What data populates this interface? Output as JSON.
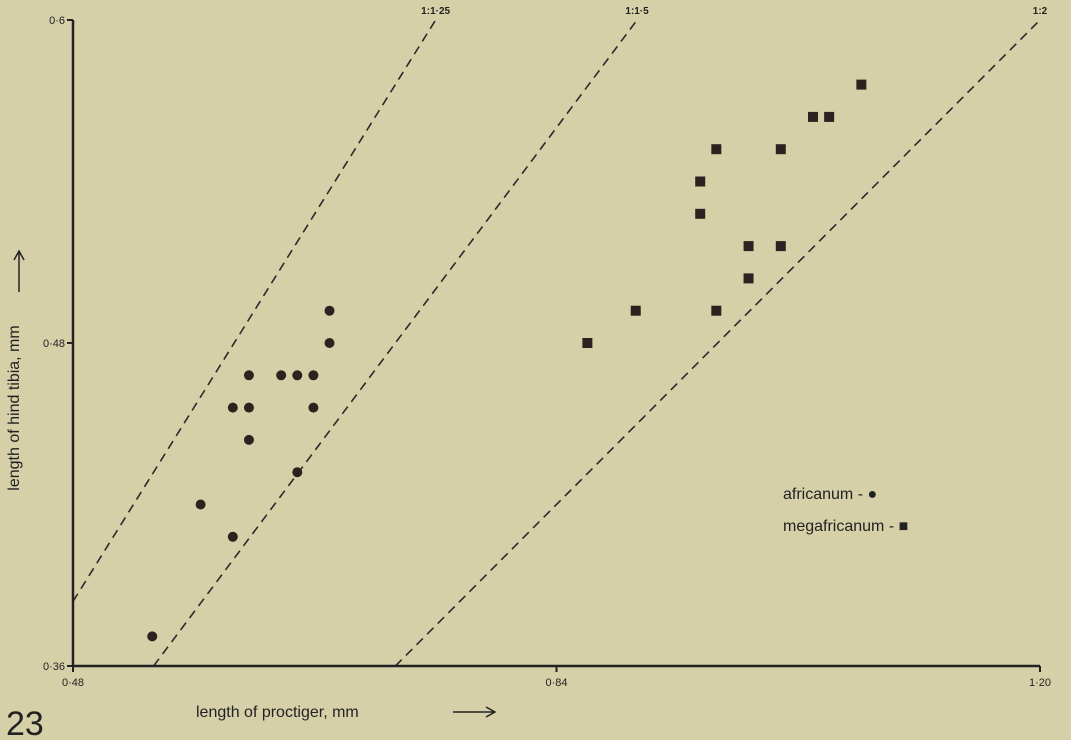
{
  "figure_number": "23",
  "chart_data": {
    "type": "scatter",
    "xlabel": "length of proctiger,  mm",
    "ylabel": "length of hind tibia,  mm",
    "xlim": [
      0.48,
      1.2
    ],
    "ylim": [
      0.36,
      0.6
    ],
    "x_ticks": [
      {
        "value": 0.48,
        "label": "0·48"
      },
      {
        "value": 0.84,
        "label": "0·84"
      },
      {
        "value": 1.2,
        "label": "1·20"
      }
    ],
    "y_ticks": [
      {
        "value": 0.36,
        "label": "0·36"
      },
      {
        "value": 0.48,
        "label": "0·48"
      },
      {
        "value": 0.6,
        "label": "0·6"
      }
    ],
    "reference_lines": [
      {
        "label": "1:1·25",
        "slope": 1.25
      },
      {
        "label": "1:1·5",
        "slope": 1.5
      },
      {
        "label": "1:2",
        "slope": 2
      }
    ],
    "legend_position": "bottom-right",
    "series": [
      {
        "name": "africanum",
        "legend_label": "africanum    - ●",
        "marker": "circle",
        "points": [
          {
            "x": 0.539,
            "y": 0.371
          },
          {
            "x": 0.575,
            "y": 0.42
          },
          {
            "x": 0.599,
            "y": 0.408
          },
          {
            "x": 0.599,
            "y": 0.456
          },
          {
            "x": 0.611,
            "y": 0.468
          },
          {
            "x": 0.611,
            "y": 0.456
          },
          {
            "x": 0.611,
            "y": 0.444
          },
          {
            "x": 0.635,
            "y": 0.468
          },
          {
            "x": 0.647,
            "y": 0.468
          },
          {
            "x": 0.647,
            "y": 0.432
          },
          {
            "x": 0.659,
            "y": 0.468
          },
          {
            "x": 0.659,
            "y": 0.456
          },
          {
            "x": 0.671,
            "y": 0.492
          },
          {
            "x": 0.671,
            "y": 0.48
          }
        ]
      },
      {
        "name": "megafricanum",
        "legend_label": "megafricanum  - ■",
        "marker": "square",
        "points": [
          {
            "x": 0.863,
            "y": 0.48
          },
          {
            "x": 0.899,
            "y": 0.492
          },
          {
            "x": 0.947,
            "y": 0.528
          },
          {
            "x": 0.947,
            "y": 0.54
          },
          {
            "x": 0.959,
            "y": 0.552
          },
          {
            "x": 0.959,
            "y": 0.492
          },
          {
            "x": 0.983,
            "y": 0.516
          },
          {
            "x": 0.983,
            "y": 0.504
          },
          {
            "x": 1.007,
            "y": 0.552
          },
          {
            "x": 1.007,
            "y": 0.516
          },
          {
            "x": 1.031,
            "y": 0.564
          },
          {
            "x": 1.043,
            "y": 0.564
          },
          {
            "x": 1.067,
            "y": 0.576
          }
        ]
      }
    ]
  }
}
